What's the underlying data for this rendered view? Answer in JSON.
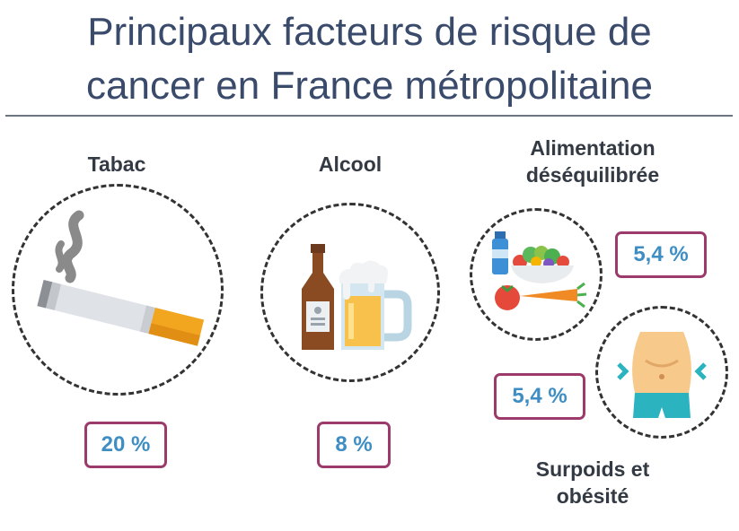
{
  "title": {
    "line1": "Principaux facteurs de risque de",
    "line2": "cancer en France métropolitaine"
  },
  "factors": {
    "tabac": {
      "label": "Tabac",
      "value": "20 %",
      "icon": "cigarette-icon"
    },
    "alcool": {
      "label": "Alcool",
      "value": "8 %",
      "icon": "beer-icon"
    },
    "alimentation": {
      "label_line1": "Alimentation",
      "label_line2": "déséquilibrée",
      "value": "5,4 %",
      "icon": "food-icon"
    },
    "surpoids": {
      "label_line1": "Surpoids et",
      "label_line2": "obésité",
      "value": "5,4 %",
      "icon": "belly-icon"
    }
  },
  "colors": {
    "title": "#3a4a6b",
    "badge_border": "#9c3b6b",
    "badge_text": "#3e8ec4",
    "circle_border": "#333333"
  }
}
